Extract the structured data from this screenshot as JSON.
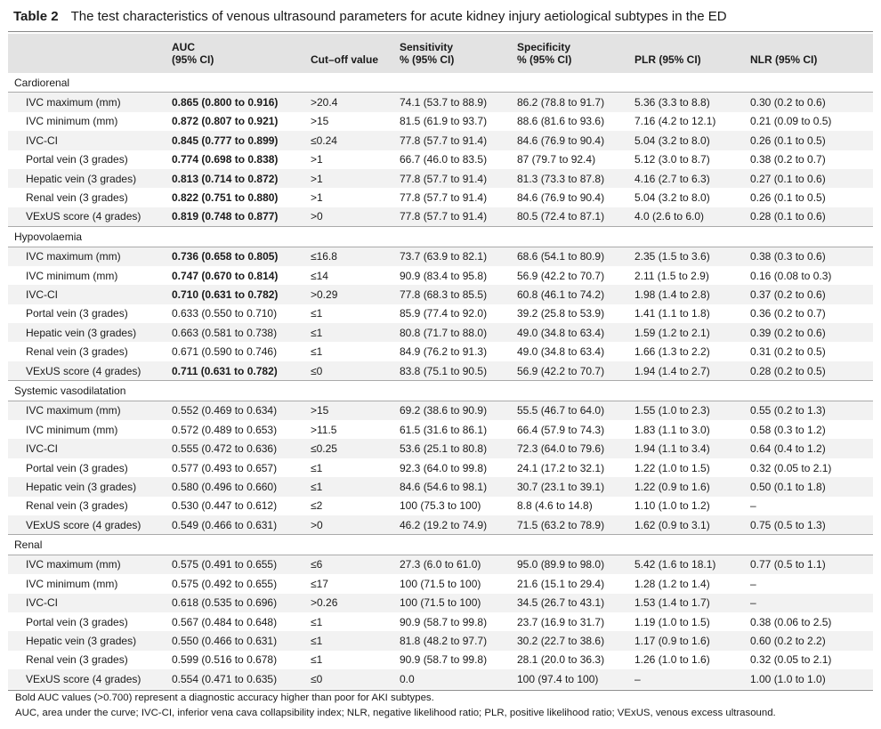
{
  "title": {
    "label": "Table 2",
    "text": "The test characteristics of venous ultrasound parameters for acute kidney injury aetiological subtypes in the ED"
  },
  "headers": {
    "auc_1": "AUC",
    "auc_2": "(95% CI)",
    "cutoff": "Cut–off value",
    "sens_1": "Sensitivity",
    "sens_2": "% (95% CI)",
    "spec_1": "Specificity",
    "spec_2": "% (95% CI)",
    "plr": "PLR (95% CI)",
    "nlr": "NLR (95% CI)"
  },
  "groups": [
    {
      "name": "Cardiorenal",
      "rows": [
        {
          "param": "IVC maximum (mm)",
          "auc": "0.865 (0.800 to 0.916)",
          "bold": true,
          "cutoff": ">20.4",
          "sens": "74.1 (53.7 to 88.9)",
          "spec": "86.2 (78.8 to 91.7)",
          "plr": "5.36 (3.3 to 8.8)",
          "nlr": "0.30 (0.2 to 0.6)"
        },
        {
          "param": "IVC minimum (mm)",
          "auc": "0.872 (0.807 to 0.921)",
          "bold": true,
          "cutoff": ">15",
          "sens": "81.5 (61.9 to 93.7)",
          "spec": "88.6 (81.6 to 93.6)",
          "plr": "7.16 (4.2 to 12.1)",
          "nlr": "0.21 (0.09 to 0.5)"
        },
        {
          "param": "IVC-CI",
          "auc": "0.845 (0.777 to 0.899)",
          "bold": true,
          "cutoff": "≤0.24",
          "sens": "77.8 (57.7 to 91.4)",
          "spec": "84.6 (76.9 to 90.4)",
          "plr": "5.04 (3.2 to 8.0)",
          "nlr": "0.26 (0.1 to 0.5)"
        },
        {
          "param": "Portal vein (3 grades)",
          "auc": "0.774 (0.698 to 0.838)",
          "bold": true,
          "cutoff": ">1",
          "sens": "66.7 (46.0 to 83.5)",
          "spec": "87 (79.7 to 92.4)",
          "plr": "5.12 (3.0 to 8.7)",
          "nlr": "0.38 (0.2 to 0.7)"
        },
        {
          "param": "Hepatic vein (3 grades)",
          "auc": "0.813 (0.714 to 0.872)",
          "bold": true,
          "cutoff": ">1",
          "sens": "77.8 (57.7 to 91.4)",
          "spec": "81.3 (73.3 to 87.8)",
          "plr": "4.16 (2.7 to 6.3)",
          "nlr": "0.27 (0.1 to 0.6)"
        },
        {
          "param": "Renal vein (3 grades)",
          "auc": "0.822 (0.751 to 0.880)",
          "bold": true,
          "cutoff": ">1",
          "sens": "77.8 (57.7 to 91.4)",
          "spec": "84.6 (76.9 to 90.4)",
          "plr": "5.04 (3.2 to 8.0)",
          "nlr": "0.26 (0.1 to 0.5)"
        },
        {
          "param": "VExUS score (4 grades)",
          "auc": "0.819 (0.748 to 0.877)",
          "bold": true,
          "cutoff": ">0",
          "sens": "77.8 (57.7 to 91.4)",
          "spec": "80.5 (72.4 to 87.1)",
          "plr": "4.0 (2.6 to 6.0)",
          "nlr": "0.28 (0.1 to 0.6)"
        }
      ]
    },
    {
      "name": "Hypovolaemia",
      "rows": [
        {
          "param": "IVC maximum (mm)",
          "auc": "0.736 (0.658 to 0.805)",
          "bold": true,
          "cutoff": "≤16.8",
          "sens": "73.7 (63.9 to 82.1)",
          "spec": "68.6 (54.1 to 80.9)",
          "plr": "2.35 (1.5 to 3.6)",
          "nlr": "0.38 (0.3 to 0.6)"
        },
        {
          "param": "IVC minimum (mm)",
          "auc": "0.747 (0.670 to 0.814)",
          "bold": true,
          "cutoff": "≤14",
          "sens": "90.9 (83.4 to 95.8)",
          "spec": "56.9 (42.2 to 70.7)",
          "plr": "2.11 (1.5 to 2.9)",
          "nlr": "0.16 (0.08 to 0.3)"
        },
        {
          "param": "IVC-CI",
          "auc": "0.710 (0.631 to 0.782)",
          "bold": true,
          "cutoff": ">0.29",
          "sens": "77.8 (68.3 to 85.5)",
          "spec": "60.8 (46.1 to 74.2)",
          "plr": "1.98 (1.4 to 2.8)",
          "nlr": "0.37 (0.2 to 0.6)"
        },
        {
          "param": "Portal vein (3 grades)",
          "auc": "0.633 (0.550 to 0.710)",
          "bold": false,
          "cutoff": "≤1",
          "sens": "85.9 (77.4 to 92.0)",
          "spec": "39.2 (25.8 to 53.9)",
          "plr": "1.41 (1.1 to 1.8)",
          "nlr": "0.36 (0.2 to 0.7)"
        },
        {
          "param": "Hepatic vein (3 grades)",
          "auc": "0.663 (0.581 to 0.738)",
          "bold": false,
          "cutoff": "≤1",
          "sens": "80.8 (71.7 to 88.0)",
          "spec": "49.0 (34.8 to 63.4)",
          "plr": "1.59 (1.2 to 2.1)",
          "nlr": "0.39 (0.2 to 0.6)"
        },
        {
          "param": "Renal vein (3 grades)",
          "auc": "0.671 (0.590 to 0.746)",
          "bold": false,
          "cutoff": "≤1",
          "sens": "84.9 (76.2 to 91.3)",
          "spec": "49.0 (34.8 to 63.4)",
          "plr": "1.66 (1.3 to 2.2)",
          "nlr": "0.31 (0.2 to 0.5)"
        },
        {
          "param": "VExUS score (4 grades)",
          "auc": "0.711 (0.631 to 0.782)",
          "bold": true,
          "cutoff": "≤0",
          "sens": "83.8 (75.1 to 90.5)",
          "spec": "56.9 (42.2 to 70.7)",
          "plr": "1.94 (1.4 to 2.7)",
          "nlr": "0.28 (0.2 to 0.5)"
        }
      ]
    },
    {
      "name": "Systemic vasodilatation",
      "rows": [
        {
          "param": "IVC maximum (mm)",
          "auc": "0.552 (0.469 to 0.634)",
          "bold": false,
          "cutoff": ">15",
          "sens": "69.2 (38.6 to 90.9)",
          "spec": "55.5 (46.7 to 64.0)",
          "plr": "1.55 (1.0 to 2.3)",
          "nlr": "0.55 (0.2 to 1.3)"
        },
        {
          "param": "IVC minimum (mm)",
          "auc": "0.572 (0.489 to 0.653)",
          "bold": false,
          "cutoff": ">11.5",
          "sens": "61.5 (31.6 to 86.1)",
          "spec": "66.4 (57.9 to 74.3)",
          "plr": "1.83 (1.1 to 3.0)",
          "nlr": "0.58 (0.3 to 1.2)"
        },
        {
          "param": "IVC-CI",
          "auc": "0.555 (0.472 to 0.636)",
          "bold": false,
          "cutoff": "≤0.25",
          "sens": "53.6 (25.1 to 80.8)",
          "spec": "72.3 (64.0 to 79.6)",
          "plr": "1.94 (1.1 to 3.4)",
          "nlr": "0.64 (0.4 to 1.2)"
        },
        {
          "param": "Portal vein (3 grades)",
          "auc": "0.577 (0.493 to 0.657)",
          "bold": false,
          "cutoff": "≤1",
          "sens": "92.3 (64.0 to 99.8)",
          "spec": "24.1 (17.2 to 32.1)",
          "plr": "1.22 (1.0 to 1.5)",
          "nlr": "0.32 (0.05 to 2.1)"
        },
        {
          "param": "Hepatic vein (3 grades)",
          "auc": "0.580 (0.496 to 0.660)",
          "bold": false,
          "cutoff": "≤1",
          "sens": "84.6 (54.6 to 98.1)",
          "spec": "30.7 (23.1 to 39.1)",
          "plr": "1.22 (0.9 to 1.6)",
          "nlr": "0.50 (0.1 to 1.8)"
        },
        {
          "param": "Renal vein (3 grades)",
          "auc": "0.530 (0.447 to 0.612)",
          "bold": false,
          "cutoff": "≤2",
          "sens": "100 (75.3 to 100)",
          "spec": "8.8 (4.6 to 14.8)",
          "plr": "1.10 (1.0 to 1.2)",
          "nlr": "–"
        },
        {
          "param": "VExUS score (4 grades)",
          "auc": "0.549 (0.466 to 0.631)",
          "bold": false,
          "cutoff": ">0",
          "sens": "46.2 (19.2 to 74.9)",
          "spec": "71.5 (63.2 to 78.9)",
          "plr": "1.62 (0.9 to 3.1)",
          "nlr": "0.75 (0.5 to 1.3)"
        }
      ]
    },
    {
      "name": "Renal",
      "rows": [
        {
          "param": "IVC maximum (mm)",
          "auc": "0.575 (0.491 to 0.655)",
          "bold": false,
          "cutoff": "≤6",
          "sens": "27.3 (6.0 to 61.0)",
          "spec": "95.0 (89.9 to 98.0)",
          "plr": "5.42 (1.6 to 18.1)",
          "nlr": "0.77 (0.5 to 1.1)"
        },
        {
          "param": "IVC minimum (mm)",
          "auc": "0.575 (0.492 to 0.655)",
          "bold": false,
          "cutoff": "≤17",
          "sens": "100 (71.5 to 100)",
          "spec": "21.6 (15.1 to 29.4)",
          "plr": "1.28 (1.2 to 1.4)",
          "nlr": "–"
        },
        {
          "param": "IVC-CI",
          "auc": "0.618 (0.535 to 0.696)",
          "bold": false,
          "cutoff": ">0.26",
          "sens": "100 (71.5 to 100)",
          "spec": "34.5 (26.7 to 43.1)",
          "plr": "1.53 (1.4 to 1.7)",
          "nlr": "–"
        },
        {
          "param": "Portal vein (3 grades)",
          "auc": "0.567 (0.484 to 0.648)",
          "bold": false,
          "cutoff": "≤1",
          "sens": "90.9 (58.7 to 99.8)",
          "spec": "23.7 (16.9 to 31.7)",
          "plr": "1.19 (1.0 to 1.5)",
          "nlr": "0.38 (0.06 to 2.5)"
        },
        {
          "param": "Hepatic vein (3 grades)",
          "auc": "0.550 (0.466 to 0.631)",
          "bold": false,
          "cutoff": "≤1",
          "sens": "81.8 (48.2 to 97.7)",
          "spec": "30.2 (22.7 to 38.6)",
          "plr": "1.17 (0.9 to 1.6)",
          "nlr": "0.60 (0.2 to 2.2)"
        },
        {
          "param": "Renal vein (3 grades)",
          "auc": "0.599 (0.516 to 0.678)",
          "bold": false,
          "cutoff": "≤1",
          "sens": "90.9 (58.7 to 99.8)",
          "spec": "28.1 (20.0 to 36.3)",
          "plr": "1.26 (1.0 to 1.6)",
          "nlr": "0.32 (0.05 to 2.1)"
        },
        {
          "param": "VExUS score (4 grades)",
          "auc": "0.554 (0.471 to 0.635)",
          "bold": false,
          "cutoff": "≤0",
          "sens": "0.0",
          "spec": "100 (97.4 to 100)",
          "plr": "–",
          "nlr": "1.00 (1.0 to 1.0)"
        }
      ]
    }
  ],
  "footnotes": [
    "Bold AUC values (>0.700) represent a diagnostic accuracy higher than poor for AKI subtypes.",
    "AUC, area under the curve; IVC-CI, inferior vena cava collapsibility index; NLR, negative likelihood ratio; PLR, positive likelihood ratio; VExUS, venous excess ultrasound."
  ],
  "colors": {
    "header_bg": "#e3e3e3",
    "alt_row_bg": "#f2f2f2",
    "rule": "#888888"
  }
}
